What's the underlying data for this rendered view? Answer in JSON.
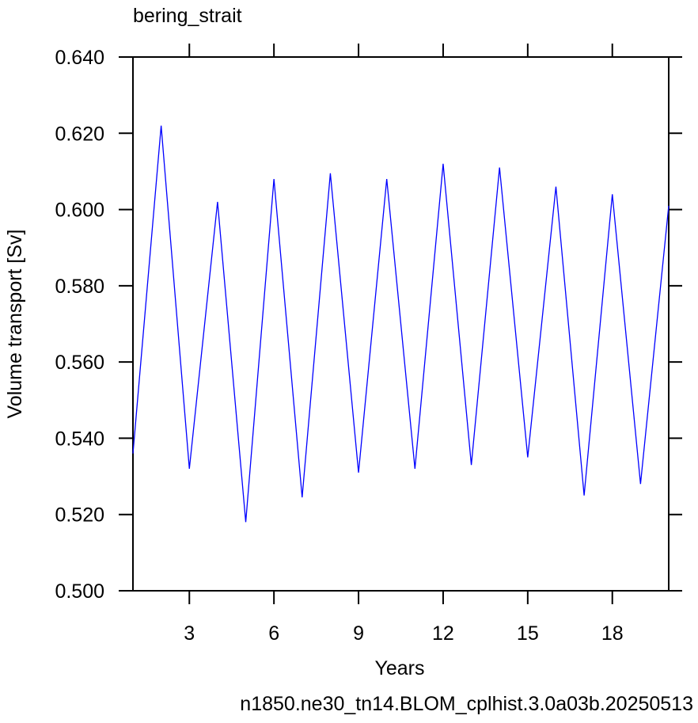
{
  "chart_data": {
    "type": "line",
    "title": "bering_strait",
    "x_label": "Years",
    "y_label": "Volume transport [Sv]",
    "footer": "n1850.ne30_tn14.BLOM_cplhist.3.0a03b.20250513",
    "x": [
      1,
      2,
      3,
      4,
      5,
      6,
      7,
      8,
      9,
      10,
      11,
      12,
      13,
      14,
      15,
      16,
      17,
      18,
      19,
      20
    ],
    "series": [
      {
        "name": "bering_strait",
        "color": "#0000ff",
        "values": [
          0.536,
          0.622,
          0.532,
          0.602,
          0.518,
          0.608,
          0.5245,
          0.6095,
          0.531,
          0.608,
          0.532,
          0.612,
          0.533,
          0.611,
          0.535,
          0.606,
          0.525,
          0.604,
          0.528,
          0.601
        ]
      }
    ],
    "xlim": [
      1,
      20
    ],
    "xticks": [
      3,
      6,
      9,
      12,
      15,
      18
    ],
    "ylim": [
      0.5,
      0.64
    ],
    "yticks": [
      {
        "value": 0.5,
        "label": "0.500"
      },
      {
        "value": 0.52,
        "label": "0.520"
      },
      {
        "value": 0.54,
        "label": "0.540"
      },
      {
        "value": 0.56,
        "label": "0.560"
      },
      {
        "value": 0.58,
        "label": "0.580"
      },
      {
        "value": 0.6,
        "label": "0.600"
      },
      {
        "value": 0.62,
        "label": "0.620"
      },
      {
        "value": 0.64,
        "label": "0.640"
      }
    ],
    "footer_color": "#0000ff"
  }
}
